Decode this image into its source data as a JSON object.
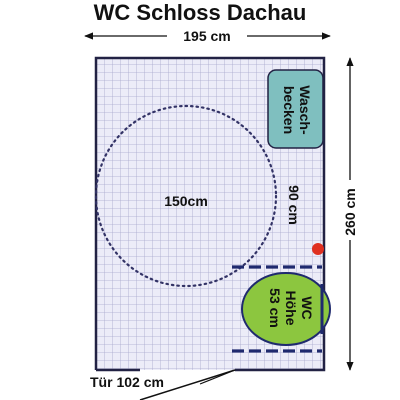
{
  "title": "WC Schloss Dachau",
  "dimensions": {
    "width": "195 cm",
    "height": "260 cm",
    "turning_circle": "150cm",
    "side_clearance": "90 cm",
    "door": "Tür 102 cm"
  },
  "fixtures": {
    "sink_line1": "Wasch-",
    "sink_line2": "becken",
    "wc_line1": "WC",
    "wc_line2": "Höhe",
    "wc_line3": "53 cm"
  },
  "colors": {
    "floor_tile": "#ececf8",
    "tile_grid": "#a8a8cc",
    "wall": "#222244",
    "sink_fill": "#7fbfbf",
    "wc_fill": "#8cc63f",
    "grab_bar": "#1f2a6e",
    "alarm_button": "#e03020",
    "circle_stroke": "#333366"
  }
}
